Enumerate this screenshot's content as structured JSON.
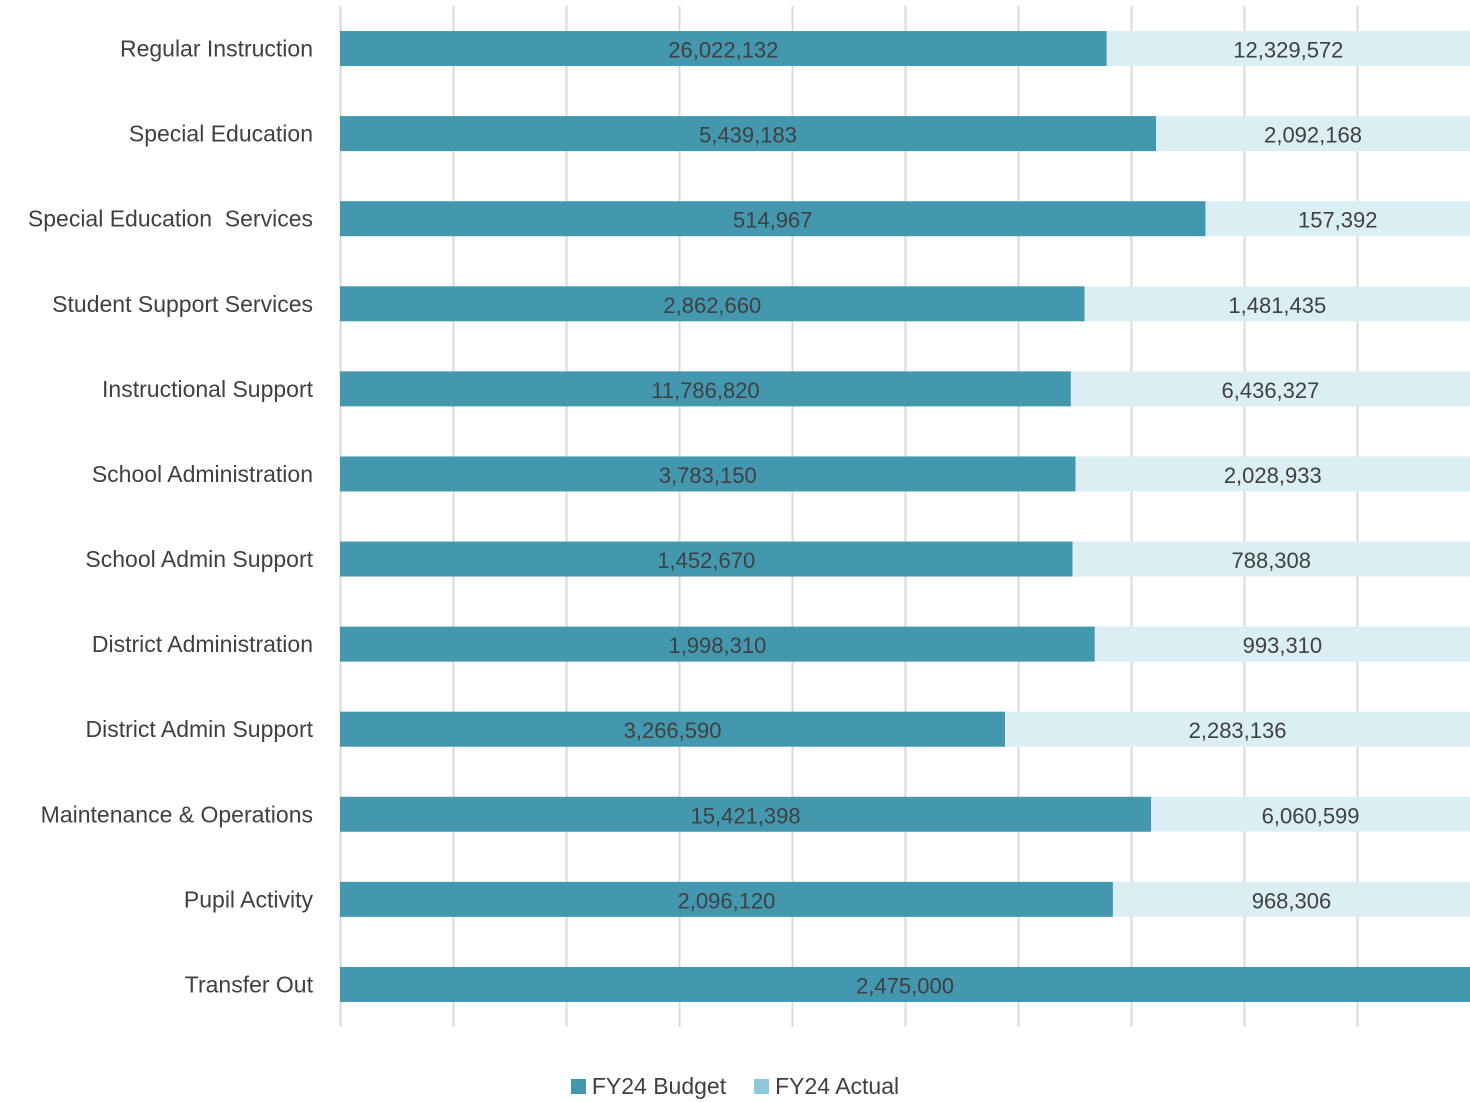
{
  "chart_data": {
    "type": "bar",
    "orientation": "horizontal",
    "stacked": "percent",
    "categories": [
      "Regular Instruction",
      "Special Education",
      "Special Education  Services",
      "Student Support Services",
      "Instructional Support",
      "School Administration",
      "School Admin Support",
      "District Administration",
      "District Admin Support",
      "Maintenance & Operations",
      "Pupil Activity",
      "Transfer Out"
    ],
    "series": [
      {
        "name": "FY24 Budget",
        "color": "#4398B0",
        "values": [
          26022132,
          5439183,
          514967,
          2862660,
          11786820,
          3783150,
          1452670,
          1998310,
          3266590,
          15421398,
          2096120,
          2475000
        ],
        "labels": [
          "26,022,132",
          "5,439,183",
          "514,967",
          "2,862,660",
          "11,786,820",
          "3,783,150",
          "1,452,670",
          "1,998,310",
          "3,266,590",
          "15,421,398",
          "2,096,120",
          "2,475,000"
        ]
      },
      {
        "name": "FY24 Actual",
        "color": "#DBEEF4",
        "legend_color": "#8EC8D8",
        "values": [
          12329572,
          2092168,
          157392,
          1481435,
          6436327,
          2028933,
          788308,
          993310,
          2283136,
          6060599,
          968306,
          0
        ],
        "labels": [
          "12,329,572",
          "2,092,168",
          "157,392",
          "1,481,435",
          "6,436,327",
          "2,028,933",
          "788,308",
          "993,310",
          "2,283,136",
          "6,060,599",
          "968,306",
          ""
        ]
      }
    ],
    "grid": true,
    "gridline_count": 10,
    "legend_position": "bottom"
  }
}
